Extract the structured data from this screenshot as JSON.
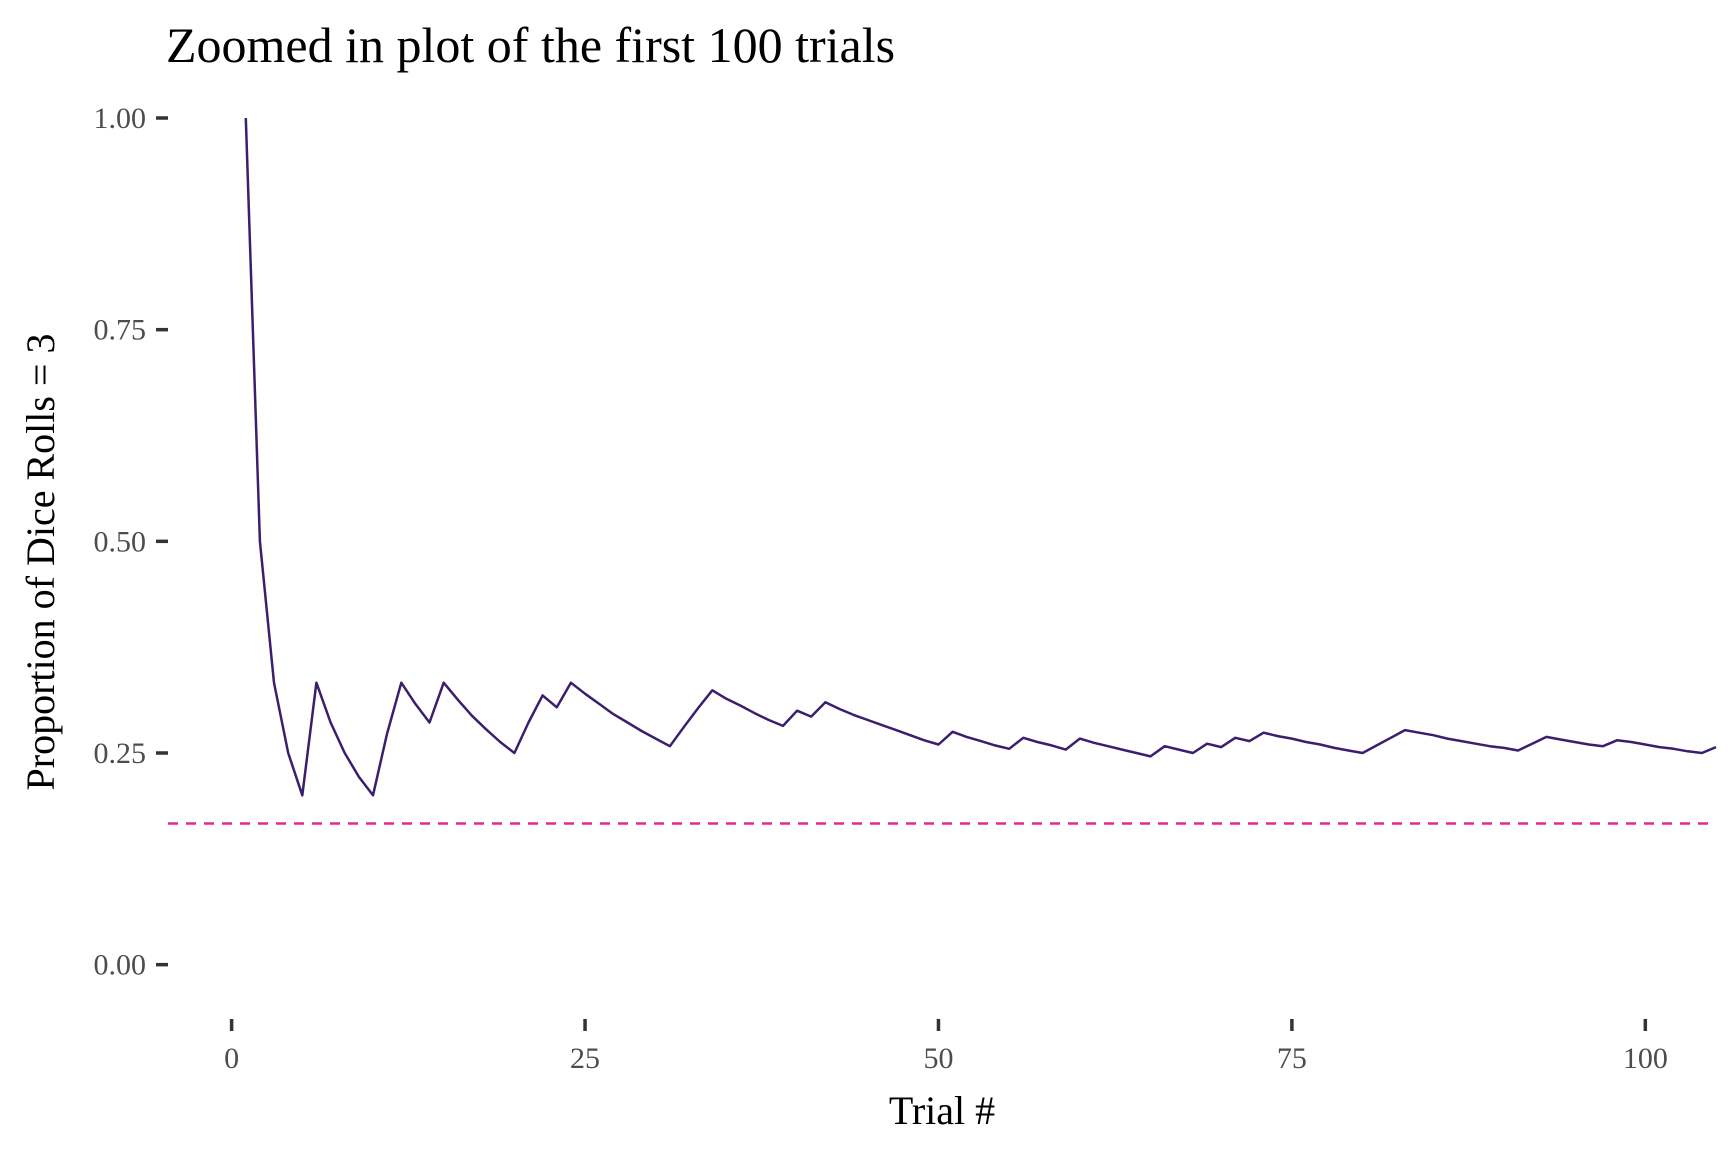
{
  "chart_data": {
    "type": "line",
    "title": "Zoomed in plot of the first 100 trials",
    "xlabel": "Trial #",
    "ylabel": "Proportion of Dice Rolls = 3",
    "xlim": [
      -4.5,
      105
    ],
    "ylim": [
      -0.05,
      1.0
    ],
    "x_ticks": [
      0,
      25,
      50,
      75,
      100
    ],
    "x_tick_labels": [
      "0",
      "25",
      "50",
      "75",
      "100"
    ],
    "y_ticks": [
      0,
      0.25,
      0.5,
      0.75,
      1.0
    ],
    "y_tick_labels": [
      "0.00",
      "0.25",
      "0.50",
      "0.75",
      "1.00"
    ],
    "grid": false,
    "legend": "none",
    "series": [
      {
        "color": "#3b1f6e",
        "x": [
          1,
          2,
          3,
          4,
          5,
          6,
          7,
          8,
          9,
          10,
          11,
          12,
          13,
          14,
          15,
          16,
          17,
          18,
          19,
          20,
          21,
          22,
          23,
          24,
          25,
          26,
          27,
          28,
          29,
          30,
          31,
          32,
          33,
          34,
          35,
          36,
          37,
          38,
          39,
          40,
          41,
          42,
          43,
          44,
          45,
          46,
          47,
          48,
          49,
          50,
          51,
          52,
          53,
          54,
          55,
          56,
          57,
          58,
          59,
          60,
          61,
          62,
          63,
          64,
          65,
          66,
          67,
          68,
          69,
          70,
          71,
          72,
          73,
          74,
          75,
          76,
          77,
          78,
          79,
          80,
          81,
          82,
          83,
          84,
          85,
          86,
          87,
          88,
          89,
          90,
          91,
          92,
          93,
          94,
          95,
          96,
          97,
          98,
          99,
          100,
          101,
          102,
          103,
          104,
          105
        ],
        "y": [
          1.0,
          0.5,
          0.333,
          0.25,
          0.2,
          0.333,
          0.286,
          0.25,
          0.222,
          0.2,
          0.273,
          0.333,
          0.308,
          0.286,
          0.333,
          0.313,
          0.294,
          0.278,
          0.263,
          0.25,
          0.286,
          0.318,
          0.304,
          0.333,
          0.32,
          0.308,
          0.296,
          0.286,
          0.276,
          0.267,
          0.258,
          0.281,
          0.303,
          0.324,
          0.314,
          0.306,
          0.297,
          0.289,
          0.282,
          0.3,
          0.293,
          0.31,
          0.302,
          0.295,
          0.289,
          0.283,
          0.277,
          0.271,
          0.265,
          0.26,
          0.275,
          0.269,
          0.264,
          0.259,
          0.255,
          0.268,
          0.263,
          0.259,
          0.254,
          0.267,
          0.262,
          0.258,
          0.254,
          0.25,
          0.246,
          0.258,
          0.254,
          0.25,
          0.261,
          0.257,
          0.268,
          0.264,
          0.274,
          0.27,
          0.267,
          0.263,
          0.26,
          0.256,
          0.253,
          0.25,
          0.259,
          0.268,
          0.277,
          0.274,
          0.271,
          0.267,
          0.264,
          0.261,
          0.258,
          0.256,
          0.253,
          0.261,
          0.269,
          0.266,
          0.263,
          0.26,
          0.258,
          0.265,
          0.263,
          0.26,
          0.257,
          0.255,
          0.252,
          0.25,
          0.257
        ]
      },
      {
        "style": "dashed",
        "color": "#e7298a",
        "x": [
          -4.5,
          105
        ],
        "y": [
          0.1667,
          0.1667
        ]
      }
    ]
  }
}
